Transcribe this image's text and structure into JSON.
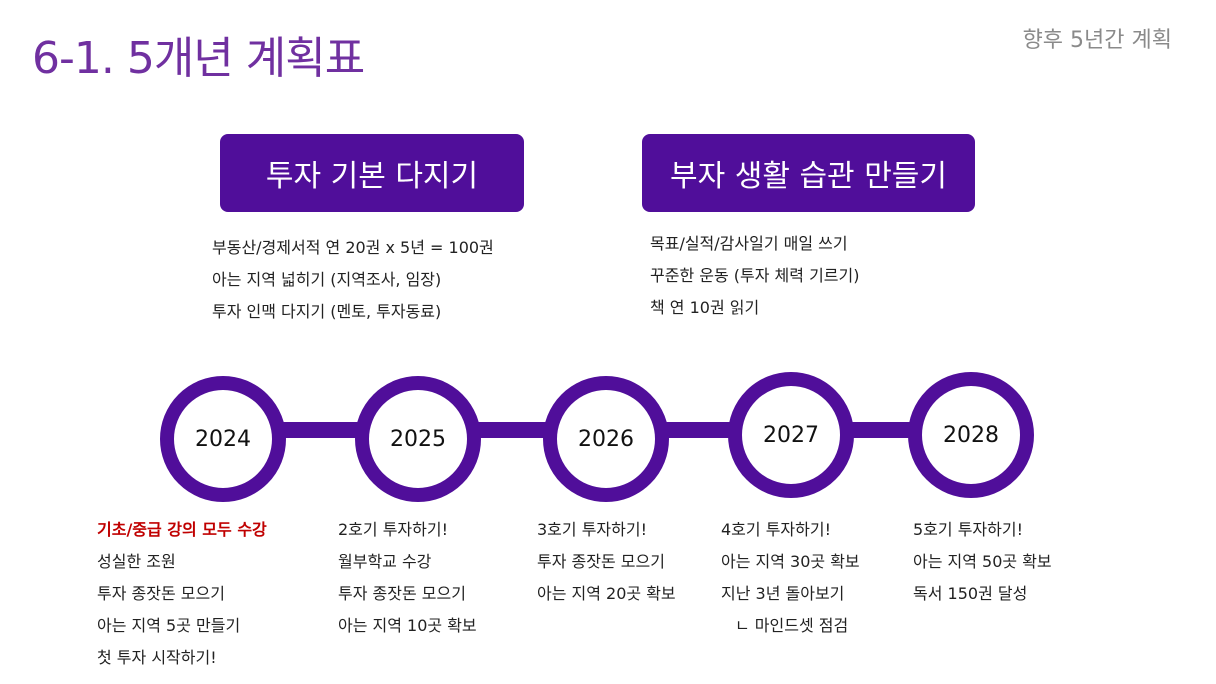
{
  "header": {
    "title": "6-1. 5개년 계획표",
    "subtitle": "향후 5년간 계획"
  },
  "goals": [
    {
      "label": "투자 기본 다지기",
      "items": [
        "부동산/경제서적 연 20권 x 5년 = 100권",
        "아는 지역 넓히기 (지역조사, 임장)",
        "투자 인맥 다지기 (멘토, 투자동료)"
      ]
    },
    {
      "label": "부자 생활 습관 만들기",
      "items": [
        "목표/실적/감사일기 매일 쓰기",
        "꾸준한 운동 (투자 체력 기르기)",
        "책 연 10권 읽기"
      ]
    }
  ],
  "timeline": [
    {
      "year": "2024",
      "items": [
        "기초/중급 강의 모두 수강",
        "성실한 조원",
        "투자 종잣돈 모으기",
        "아는 지역 5곳 만들기",
        "첫 투자 시작하기!"
      ]
    },
    {
      "year": "2025",
      "items": [
        "2호기 투자하기!",
        "월부학교 수강",
        "투자 종잣돈 모으기",
        "아는 지역 10곳 확보"
      ]
    },
    {
      "year": "2026",
      "items": [
        "3호기 투자하기!",
        "투자 종잣돈 모으기",
        "아는 지역 20곳 확보"
      ]
    },
    {
      "year": "2027",
      "items": [
        "4호기 투자하기!",
        "아는 지역 30곳 확보",
        "지난 3년 돌아보기",
        "ㄴ 마인드셋 점검"
      ]
    },
    {
      "year": "2028",
      "items": [
        "5호기 투자하기!",
        "아는 지역 50곳 확보",
        "독서 150권 달성"
      ]
    }
  ],
  "colors": {
    "title": "#7030a0",
    "accent": "#500e9a",
    "highlight": "#c00000"
  }
}
